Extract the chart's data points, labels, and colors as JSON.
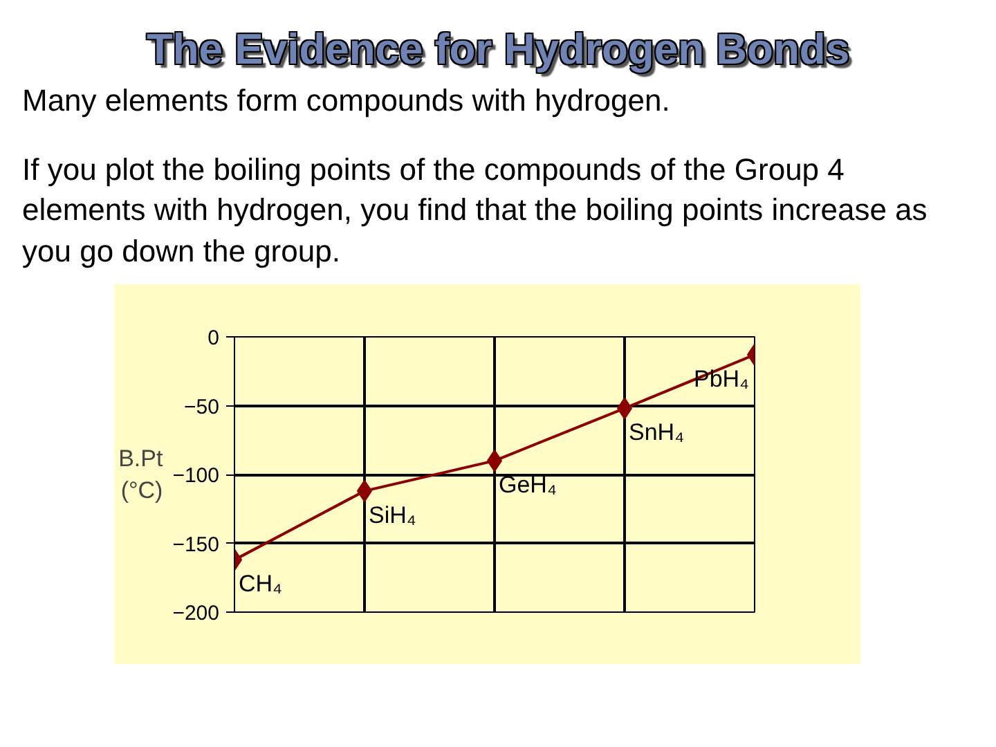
{
  "chart_data": {
    "type": "line",
    "title": "The Evidence for Hydrogen Bonds",
    "annotations": [
      "Many elements form compounds with hydrogen.",
      "If you plot the boiling points of the compounds of the Group 4 elements with hydrogen, you find that the boiling points increase as you go down the group."
    ],
    "ylabel": "B.Pt (°C)",
    "categories": [
      "CH₄",
      "SiH₄",
      "GeH₄",
      "SnH₄",
      "PbH₄"
    ],
    "series": [
      {
        "color": "#8b0000",
        "values": [
          -162,
          -112,
          -90,
          -52,
          -13
        ]
      }
    ],
    "ylim": [
      -200,
      0
    ],
    "yticks": [
      -200,
      -150,
      -100,
      -50,
      0
    ],
    "grid": true,
    "marker": "diamond",
    "line_style": "solid",
    "tick_labels": "y"
  }
}
